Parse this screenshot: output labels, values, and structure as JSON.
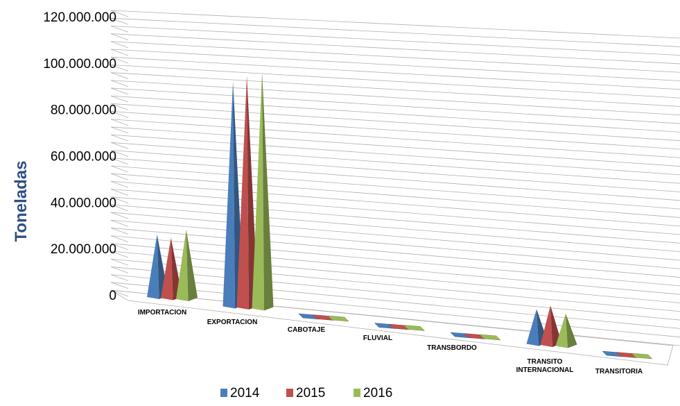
{
  "chart_data": {
    "type": "bar",
    "style": "3d-pyramid",
    "ylabel": "Toneladas",
    "ylim": [
      0,
      120000000
    ],
    "yticks": [
      "0",
      "20.000.000",
      "40.000.000",
      "60.000.000",
      "80.000.000",
      "100.000.000",
      "120.000.000"
    ],
    "categories": [
      [
        "IMPORTACION"
      ],
      [
        "EXPORTACION"
      ],
      [
        "CABOTAJE"
      ],
      [
        "FLUVIAL"
      ],
      [
        "TRANSBORDO"
      ],
      [
        "TRANSITO",
        "INTERNACIONAL"
      ],
      [
        "TRANSITORIA"
      ]
    ],
    "series": [
      {
        "name": "2014",
        "color": "#4a7ebb",
        "values": [
          27000000,
          97000000,
          500000,
          300000,
          200000,
          15000000,
          100000
        ]
      },
      {
        "name": "2015",
        "color": "#c0504d",
        "values": [
          26000000,
          100000000,
          500000,
          300000,
          200000,
          17000000,
          100000
        ]
      },
      {
        "name": "2016",
        "color": "#9bbb59",
        "values": [
          30000000,
          102000000,
          500000,
          300000,
          200000,
          14000000,
          100000
        ]
      }
    ],
    "grid": true,
    "legend_position": "bottom"
  }
}
